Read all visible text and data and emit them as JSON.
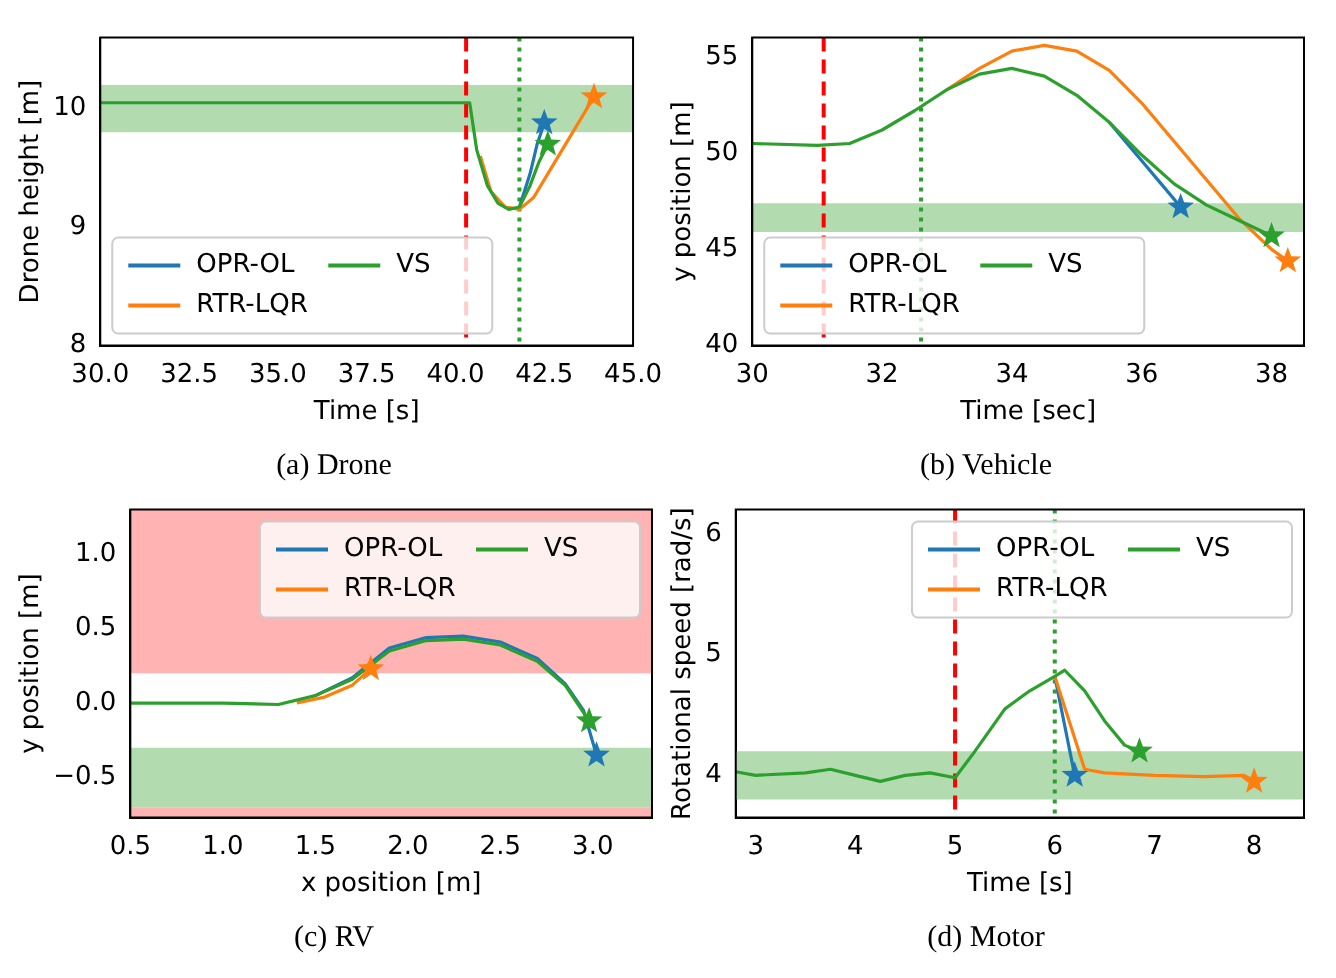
{
  "chart_data": [
    {
      "type": "line",
      "title": "(a) Drone",
      "xlabel": "Time [s]",
      "ylabel": "Drone height [m]",
      "xlim": [
        30,
        45
      ],
      "xticks": [
        {
          "value": 30,
          "label": "30.0"
        },
        {
          "value": 32.5,
          "label": "32.5"
        },
        {
          "value": 35,
          "label": "35.0"
        },
        {
          "value": 37.5,
          "label": "37.5"
        },
        {
          "value": 40,
          "label": "40.0"
        },
        {
          "value": 42.5,
          "label": "42.5"
        },
        {
          "value": 45,
          "label": "45.0"
        }
      ],
      "ylim": [
        8,
        10.6
      ],
      "yticks": [
        8,
        9,
        10
      ],
      "legend": "bottom left",
      "grid": false,
      "bands": [
        {
          "axis": "y",
          "from": 9.8,
          "to": 10.2,
          "color": "#b3dbb0"
        }
      ],
      "ref_lines": [
        {
          "axis": "x",
          "value": 40.3,
          "color": "#ff0000",
          "line_style": "dashed"
        },
        {
          "axis": "x",
          "value": 41.8,
          "color": "#2ca02c",
          "line_style": "dotted"
        }
      ],
      "series": [
        {
          "name": "OPR-OL",
          "color": "#1f77b4",
          "x": [
            41.8,
            42.1,
            42.3,
            42.5
          ],
          "values": [
            9.17,
            9.45,
            9.7,
            9.88
          ]
        },
        {
          "name": "RTR-LQR",
          "color": "#ff7f0e",
          "x": [
            40.7,
            41.0,
            41.4,
            41.8,
            42.2,
            42.7,
            43.3,
            43.9
          ],
          "values": [
            9.6,
            9.3,
            9.17,
            9.15,
            9.25,
            9.5,
            9.8,
            10.1
          ]
        },
        {
          "name": "VS",
          "color": "#2ca02c",
          "x": [
            30,
            40.3,
            40.4,
            40.6,
            40.9,
            41.2,
            41.5,
            41.8,
            42.1,
            42.35,
            42.6
          ],
          "values": [
            10.05,
            10.05,
            10.05,
            9.65,
            9.35,
            9.2,
            9.15,
            9.17,
            9.35,
            9.55,
            9.7
          ]
        },
        {
          "type": "scatter",
          "marker": "star",
          "color": "#1f77b4",
          "x": [
            42.5
          ],
          "values": [
            9.88
          ]
        },
        {
          "type": "scatter",
          "marker": "star",
          "color": "#ff7f0e",
          "x": [
            43.9
          ],
          "values": [
            10.1
          ]
        },
        {
          "type": "scatter",
          "marker": "star",
          "color": "#2ca02c",
          "x": [
            42.6
          ],
          "values": [
            9.7
          ]
        }
      ]
    },
    {
      "type": "line",
      "title": "(b) Vehicle",
      "xlabel": "Time [sec]",
      "ylabel": "y position [m]",
      "xlim": [
        30,
        38.5
      ],
      "xticks": [
        30,
        32,
        34,
        36,
        38
      ],
      "ylim": [
        40,
        56
      ],
      "yticks": [
        40,
        45,
        50,
        55
      ],
      "legend": "bottom left",
      "grid": false,
      "bands": [
        {
          "axis": "y",
          "from": 45.9,
          "to": 47.4,
          "color": "#b3dbb0"
        }
      ],
      "ref_lines": [
        {
          "axis": "x",
          "value": 31.1,
          "color": "#ff0000",
          "line_style": "dashed"
        },
        {
          "axis": "x",
          "value": 32.6,
          "color": "#2ca02c",
          "line_style": "dotted"
        }
      ],
      "series": [
        {
          "name": "OPR-OL",
          "color": "#1f77b4",
          "x": [
            35.5,
            35.8,
            36,
            36.3,
            36.6
          ],
          "values": [
            51.6,
            50.4,
            49.6,
            48.4,
            47.2
          ]
        },
        {
          "name": "RTR-LQR",
          "color": "#ff7f0e",
          "x": [
            33,
            33.5,
            34,
            34.5,
            35,
            35.5,
            36,
            36.5,
            37,
            37.5,
            38,
            38.25
          ],
          "values": [
            53.3,
            54.4,
            55.3,
            55.6,
            55.3,
            54.3,
            52.6,
            50.6,
            48.6,
            46.6,
            45,
            44.4
          ]
        },
        {
          "name": "VS",
          "color": "#2ca02c",
          "x": [
            30,
            31,
            31.5,
            32,
            32.5,
            33,
            33.5,
            34,
            34.5,
            35,
            35.5,
            36,
            36.5,
            37,
            37.5,
            38
          ],
          "values": [
            50.5,
            50.4,
            50.5,
            51.2,
            52.2,
            53.3,
            54.1,
            54.4,
            54,
            53,
            51.6,
            49.9,
            48.4,
            47.3,
            46.5,
            45.7
          ]
        },
        {
          "type": "scatter",
          "marker": "star",
          "color": "#1f77b4",
          "x": [
            36.6
          ],
          "values": [
            47.2
          ]
        },
        {
          "type": "scatter",
          "marker": "star",
          "color": "#ff7f0e",
          "x": [
            38.25
          ],
          "values": [
            44.4
          ]
        },
        {
          "type": "scatter",
          "marker": "star",
          "color": "#2ca02c",
          "x": [
            38
          ],
          "values": [
            45.7
          ]
        }
      ]
    },
    {
      "type": "line",
      "title": "(c) RV",
      "xlabel": "x position [m]",
      "ylabel": "y position [m]",
      "xlim": [
        0.5,
        3.32
      ],
      "xticks": [
        {
          "value": 0.5,
          "label": "0.5"
        },
        {
          "value": 1,
          "label": "1.0"
        },
        {
          "value": 1.5,
          "label": "1.5"
        },
        {
          "value": 2,
          "label": "2.0"
        },
        {
          "value": 2.5,
          "label": "2.5"
        },
        {
          "value": 3,
          "label": "3.0"
        }
      ],
      "ylim": [
        -0.77,
        1.3
      ],
      "yticks": [
        {
          "value": -0.5,
          "label": "−0.5"
        },
        {
          "value": 0,
          "label": "0.0"
        },
        {
          "value": 0.5,
          "label": "0.5"
        },
        {
          "value": 1,
          "label": "1.0"
        }
      ],
      "legend": "top right",
      "grid": false,
      "bands": [
        {
          "axis": "y",
          "from": 0.2,
          "to": 1.3,
          "color": "#ffb3b3"
        },
        {
          "axis": "y",
          "from": -0.7,
          "to": -0.3,
          "color": "#b3dbb0"
        },
        {
          "axis": "y",
          "from": -0.77,
          "to": -0.7,
          "color": "#ffb3b3"
        }
      ],
      "series": [
        {
          "name": "OPR-OL",
          "color": "#1f77b4",
          "x": [
            1.5,
            1.7,
            1.9,
            2.1,
            2.3,
            2.5,
            2.7,
            2.85,
            2.95,
            3.02
          ],
          "values": [
            0.05,
            0.17,
            0.37,
            0.44,
            0.45,
            0.41,
            0.3,
            0.13,
            -0.05,
            -0.35
          ]
        },
        {
          "name": "RTR-LQR",
          "color": "#ff7f0e",
          "x": [
            1.4,
            1.55,
            1.7,
            1.8
          ],
          "values": [
            0.0,
            0.04,
            0.12,
            0.23
          ]
        },
        {
          "name": "VS",
          "color": "#2ca02c",
          "x": [
            0.5,
            1.0,
            1.3,
            1.5,
            1.7,
            1.9,
            2.1,
            2.3,
            2.5,
            2.7,
            2.85,
            2.98
          ],
          "values": [
            0,
            0,
            -0.01,
            0.05,
            0.16,
            0.35,
            0.42,
            0.43,
            0.39,
            0.28,
            0.12,
            -0.12
          ]
        },
        {
          "type": "scatter",
          "marker": "star",
          "color": "#1f77b4",
          "x": [
            3.02
          ],
          "values": [
            -0.35
          ]
        },
        {
          "type": "scatter",
          "marker": "star",
          "color": "#ff7f0e",
          "x": [
            1.8
          ],
          "values": [
            0.23
          ]
        },
        {
          "type": "scatter",
          "marker": "star",
          "color": "#2ca02c",
          "x": [
            2.98
          ],
          "values": [
            -0.12
          ]
        }
      ]
    },
    {
      "type": "line",
      "title": "(d) Motor",
      "xlabel": "Time [s]",
      "ylabel": "Rotational speed [rad/s]",
      "xlim": [
        2.8,
        8.5
      ],
      "xticks": [
        3,
        4,
        5,
        6,
        7,
        8
      ],
      "ylim": [
        3.65,
        6.2
      ],
      "yticks": [
        4,
        5,
        6
      ],
      "legend": "top right",
      "grid": false,
      "bands": [
        {
          "axis": "y",
          "from": 3.8,
          "to": 4.2,
          "color": "#b3dbb0"
        }
      ],
      "ref_lines": [
        {
          "axis": "x",
          "value": 5,
          "color": "#ff0000",
          "line_style": "dashed"
        },
        {
          "axis": "x",
          "value": 6,
          "color": "#2ca02c",
          "line_style": "dotted"
        }
      ],
      "series": [
        {
          "name": "OPR-OL",
          "color": "#1f77b4",
          "x": [
            6.0,
            6.2
          ],
          "values": [
            4.82,
            4.0
          ]
        },
        {
          "name": "RTR-LQR",
          "color": "#ff7f0e",
          "x": [
            6.0,
            6.3,
            6.5,
            7,
            7.5,
            7.9,
            8
          ],
          "values": [
            4.82,
            4.05,
            4.02,
            4.0,
            3.99,
            4.0,
            3.95
          ]
        },
        {
          "name": "VS",
          "color": "#2ca02c",
          "x": [
            2.8,
            3,
            3.5,
            3.75,
            4,
            4.25,
            4.5,
            4.75,
            5,
            5.2,
            5.5,
            5.75,
            6,
            6.1,
            6.3,
            6.5,
            6.7,
            6.85
          ],
          "values": [
            4.03,
            4.0,
            4.02,
            4.05,
            4.0,
            3.95,
            4.0,
            4.02,
            3.98,
            4.2,
            4.55,
            4.7,
            4.82,
            4.87,
            4.7,
            4.45,
            4.25,
            4.2
          ]
        },
        {
          "type": "scatter",
          "marker": "star",
          "color": "#1f77b4",
          "x": [
            6.2
          ],
          "values": [
            4.0
          ]
        },
        {
          "type": "scatter",
          "marker": "star",
          "color": "#ff7f0e",
          "x": [
            8
          ],
          "values": [
            3.95
          ]
        },
        {
          "type": "scatter",
          "marker": "star",
          "color": "#2ca02c",
          "x": [
            6.85
          ],
          "values": [
            4.2
          ]
        }
      ]
    }
  ]
}
